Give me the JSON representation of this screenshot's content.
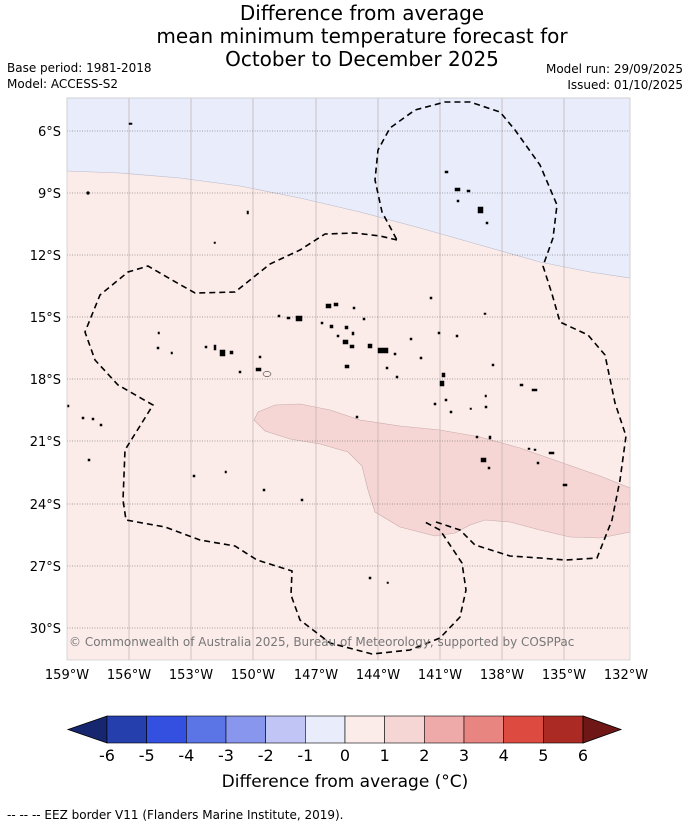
{
  "header": {
    "title_lines": [
      "Difference from average",
      "mean minimum temperature forecast for",
      "October to December 2025"
    ],
    "base_period": "Base period: 1981-2018",
    "model": "Model: ACCESS-S2",
    "model_run": "Model run: 29/09/2025",
    "issued": "Issued: 01/10/2025"
  },
  "map": {
    "lon_labels": [
      "159°W",
      "156°W",
      "153°W",
      "150°W",
      "147°W",
      "144°W",
      "141°W",
      "138°W",
      "135°W",
      "132°W"
    ],
    "lat_labels": [
      "6°S",
      "9°S",
      "12°S",
      "15°S",
      "18°S",
      "21°S",
      "24°S",
      "27°S",
      "30°S"
    ],
    "copyright": "© Commonwealth of Australia 2025, Bureau of Meteorology, supported by COSPPac",
    "colors": {
      "band_neg1_0": "#e8ecfb",
      "band_0_1": "#fbecea",
      "band_1_2": "#f5d6d5",
      "border": "#000000"
    }
  },
  "colorbar": {
    "ticks": [
      "-6",
      "-5",
      "-4",
      "-3",
      "-2",
      "-1",
      "0",
      "1",
      "2",
      "3",
      "4",
      "5",
      "6"
    ],
    "colors": [
      "#253fad",
      "#3350e0",
      "#5b74e6",
      "#8896ed",
      "#c0c5f6",
      "#e8ecfb",
      "#fbecea",
      "#f5d6d5",
      "#eeaaa8",
      "#e88581",
      "#dc4a40",
      "#ab2b24"
    ],
    "under_color": "#16266f",
    "over_color": "#6f1717",
    "label": "Difference from average (°C)"
  },
  "footer": {
    "legend": "--  --  -- EEZ border V11 (Flanders Marine Institute, 2019)."
  }
}
